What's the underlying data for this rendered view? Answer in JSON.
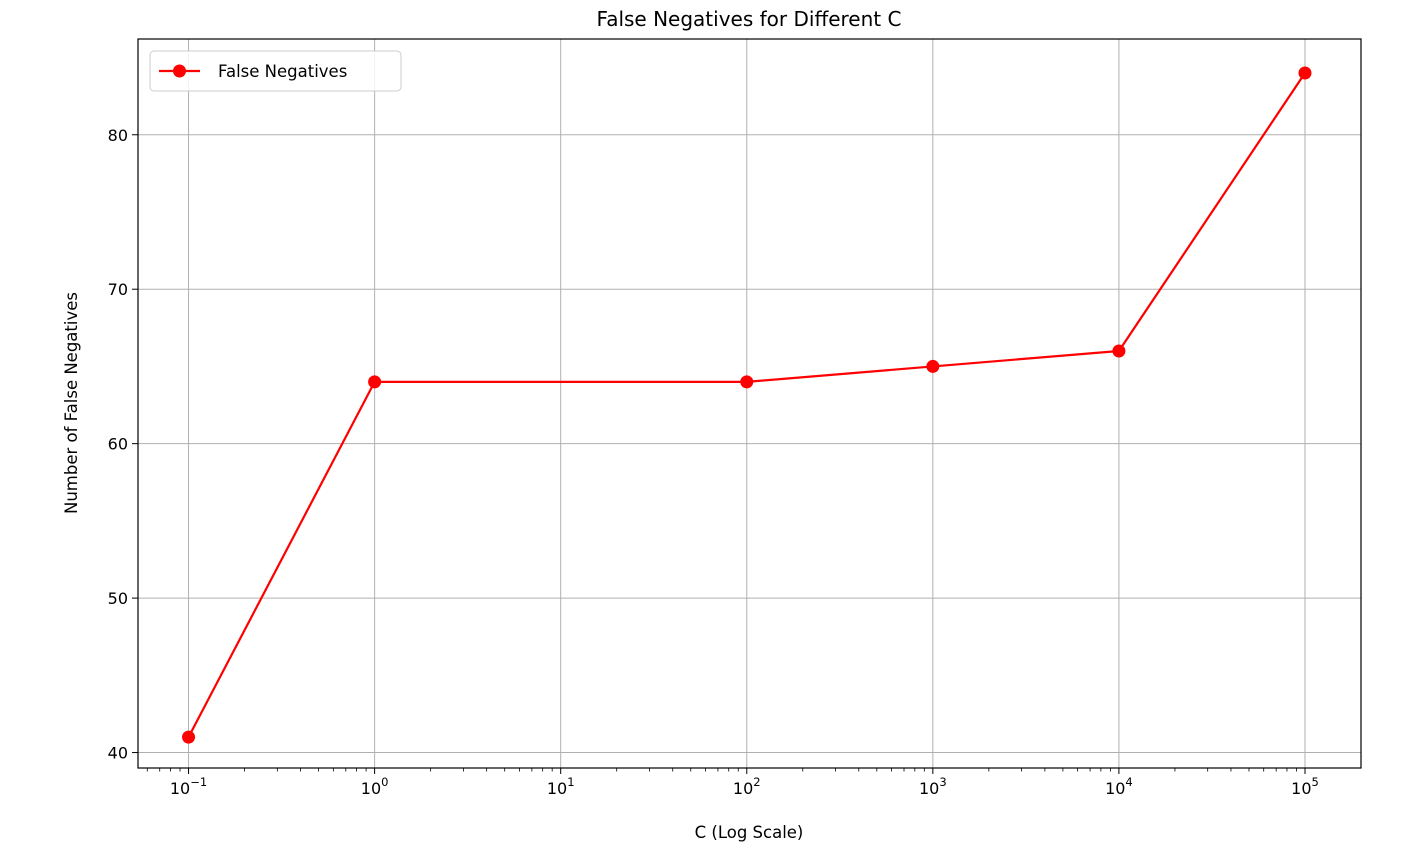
{
  "chart_data": {
    "type": "line",
    "title": "False Negatives for Different C",
    "xlabel": "C (Log Scale)",
    "ylabel": "Number of False Negatives",
    "xscale": "log",
    "xlim": [
      0.0535,
      200000
    ],
    "ylim": [
      39.0,
      86.2
    ],
    "x_ticks": [
      {
        "value": 0.1,
        "base": "10",
        "exp": "−1"
      },
      {
        "value": 1,
        "base": "10",
        "exp": "0"
      },
      {
        "value": 10,
        "base": "10",
        "exp": "1"
      },
      {
        "value": 100,
        "base": "10",
        "exp": "2"
      },
      {
        "value": 1000,
        "base": "10",
        "exp": "3"
      },
      {
        "value": 10000,
        "base": "10",
        "exp": "4"
      },
      {
        "value": 100000,
        "base": "10",
        "exp": "5"
      }
    ],
    "y_ticks": [
      {
        "value": 40,
        "label": "40"
      },
      {
        "value": 50,
        "label": "50"
      },
      {
        "value": 60,
        "label": "60"
      },
      {
        "value": 70,
        "label": "70"
      },
      {
        "value": 80,
        "label": "80"
      }
    ],
    "grid": true,
    "legend": "upper-left",
    "series": [
      {
        "name": "False Negatives",
        "color": "#ff0000",
        "marker": "circle",
        "x": [
          0.1,
          1,
          100,
          1000,
          10000,
          100000
        ],
        "y": [
          41,
          64,
          64,
          65,
          66,
          84
        ]
      }
    ]
  }
}
